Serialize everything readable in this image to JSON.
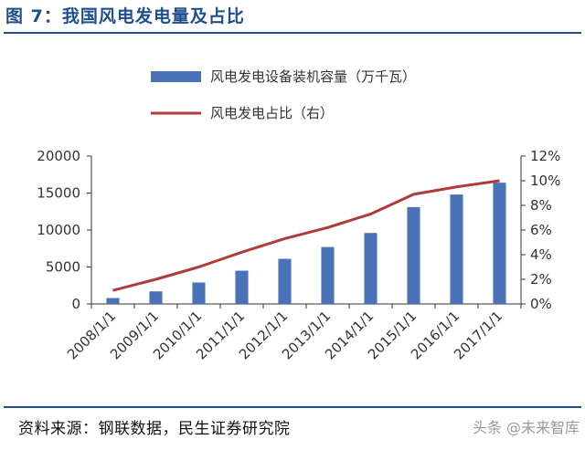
{
  "title": "图 7：我国风电发电量及占比",
  "source": "资料来源：钢联数据，民生证券研究院",
  "watermark": "头条 @未来智库",
  "colors": {
    "bar": "#4a72b8",
    "line": "#b13a3a",
    "title": "#1f4e8c"
  },
  "chart_data": {
    "type": "bar+line",
    "categories": [
      "2008/1/1",
      "2009/1/1",
      "2010/1/1",
      "2011/1/1",
      "2012/1/1",
      "2013/1/1",
      "2014/1/1",
      "2015/1/1",
      "2016/1/1",
      "2017/1/1"
    ],
    "series": [
      {
        "name": "风电发电设备装机容量（万千瓦）",
        "type": "bar",
        "axis": "left",
        "values": [
          800,
          1700,
          2900,
          4500,
          6100,
          7700,
          9600,
          13100,
          14800,
          16400
        ]
      },
      {
        "name": "风电发电占比（右）",
        "type": "line",
        "axis": "right",
        "values": [
          1.1,
          2.0,
          3.0,
          4.2,
          5.3,
          6.2,
          7.3,
          8.9,
          9.5,
          10.0
        ]
      }
    ],
    "y_left": {
      "min": 0,
      "max": 20000,
      "ticks": [
        "0",
        "5000",
        "10000",
        "15000",
        "20000"
      ]
    },
    "y_right": {
      "min": 0,
      "max": 12,
      "ticks": [
        "0%",
        "2%",
        "4%",
        "6%",
        "8%",
        "10%",
        "12%"
      ]
    },
    "legend_position": "top-center",
    "grid": false
  }
}
